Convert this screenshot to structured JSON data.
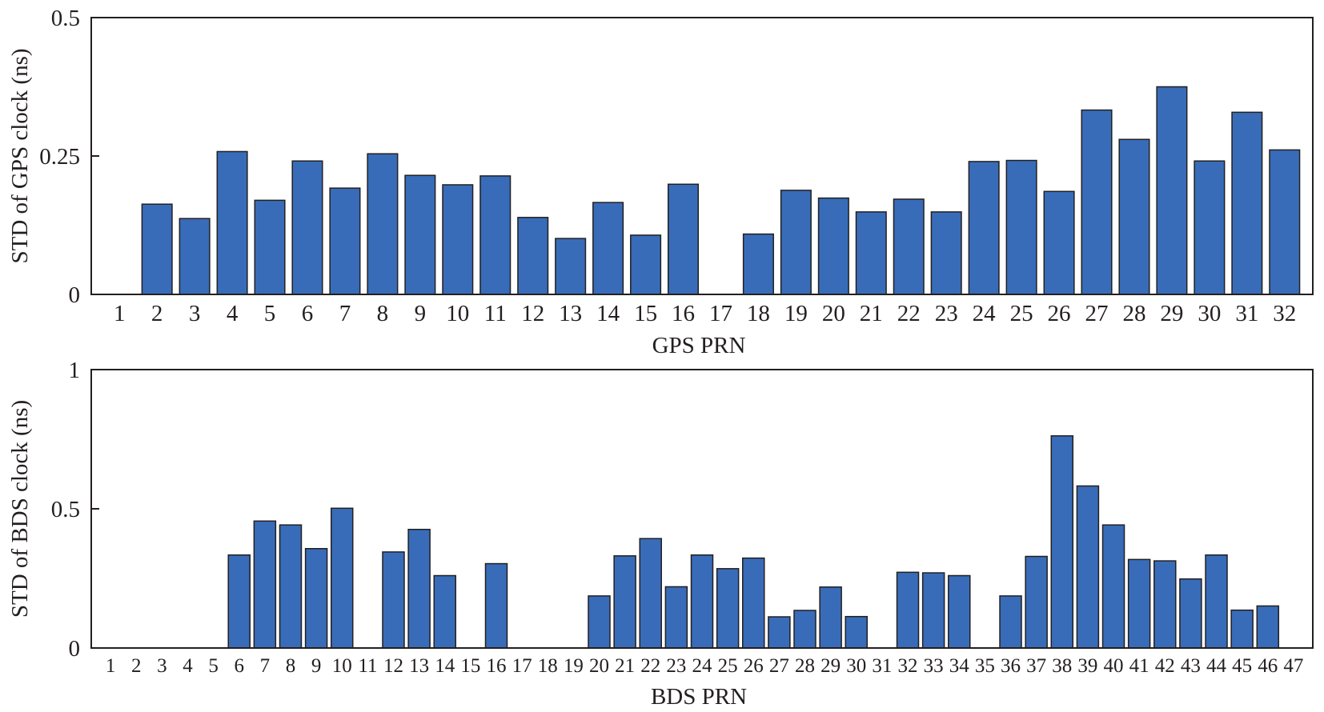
{
  "chart_data": [
    {
      "type": "bar",
      "xlabel": "GPS PRN",
      "ylabel": "STD of GPS clock (ns)",
      "ylim": [
        0,
        0.5
      ],
      "yticks": [
        0,
        0.25,
        0.5
      ],
      "ytick_labels": [
        "0",
        "0.25",
        "0.5"
      ],
      "bar_color": "#386cb8",
      "categories": [
        "1",
        "2",
        "3",
        "4",
        "5",
        "6",
        "7",
        "8",
        "9",
        "10",
        "11",
        "12",
        "13",
        "14",
        "15",
        "16",
        "17",
        "18",
        "19",
        "20",
        "21",
        "22",
        "23",
        "24",
        "25",
        "26",
        "27",
        "28",
        "29",
        "30",
        "31",
        "32"
      ],
      "values": [
        0,
        0.163,
        0.137,
        0.258,
        0.17,
        0.241,
        0.192,
        0.254,
        0.215,
        0.198,
        0.214,
        0.139,
        0.101,
        0.166,
        0.107,
        0.199,
        0,
        0.109,
        0.188,
        0.174,
        0.149,
        0.172,
        0.149,
        0.24,
        0.242,
        0.186,
        0.333,
        0.28,
        0.375,
        0.241,
        0.329,
        0.261
      ]
    },
    {
      "type": "bar",
      "xlabel": "BDS PRN",
      "ylabel": "STD of BDS clock (ns)",
      "ylim": [
        0,
        1
      ],
      "yticks": [
        0,
        0.5,
        1
      ],
      "ytick_labels": [
        "0",
        "0.5",
        "1"
      ],
      "bar_color": "#386cb8",
      "categories": [
        "1",
        "2",
        "3",
        "4",
        "5",
        "6",
        "7",
        "8",
        "9",
        "10",
        "11",
        "12",
        "13",
        "14",
        "15",
        "16",
        "17",
        "18",
        "19",
        "20",
        "21",
        "22",
        "23",
        "24",
        "25",
        "26",
        "27",
        "28",
        "29",
        "30",
        "31",
        "32",
        "33",
        "34",
        "35",
        "36",
        "37",
        "38",
        "39",
        "40",
        "41",
        "42",
        "43",
        "44",
        "45",
        "46",
        "47"
      ],
      "values": [
        0,
        0,
        0,
        0,
        0,
        0.334,
        0.456,
        0.442,
        0.357,
        0.502,
        0,
        0.345,
        0.426,
        0.26,
        0,
        0.303,
        0,
        0,
        0,
        0.187,
        0.331,
        0.393,
        0.22,
        0.334,
        0.285,
        0.323,
        0.112,
        0.135,
        0.219,
        0.113,
        0,
        0.272,
        0.27,
        0.26,
        0,
        0.187,
        0.329,
        0.762,
        0.582,
        0.442,
        0.318,
        0.313,
        0.248,
        0.334,
        0.136,
        0.151,
        0
      ]
    }
  ]
}
